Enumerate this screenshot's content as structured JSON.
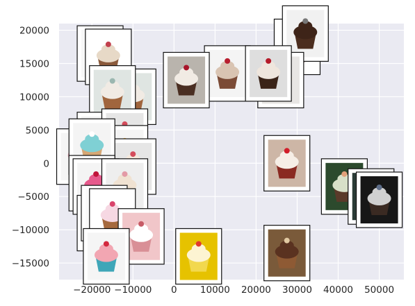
{
  "chart_data": {
    "type": "scatter",
    "title": "",
    "xlabel": "",
    "ylabel": "",
    "xlim": [
      -28000,
      56000
    ],
    "ylim": [
      -17500,
      21000
    ],
    "x_ticks": [
      -20000,
      -10000,
      0,
      10000,
      20000,
      30000,
      40000,
      50000
    ],
    "x_tick_labels": [
      "−20000",
      "−10000",
      "0",
      "10000",
      "20000",
      "30000",
      "40000",
      "50000"
    ],
    "y_ticks": [
      -15000,
      -10000,
      -5000,
      0,
      5000,
      10000,
      15000,
      20000
    ],
    "y_tick_labels": [
      "−15000",
      "−10000",
      "−5000",
      "0",
      "5000",
      "10000",
      "15000",
      "20000"
    ],
    "grid": true,
    "legend": "none",
    "marker": "image-thumbnail",
    "points": [
      {
        "x": 30000,
        "y": 17500,
        "image": "chocolate-cupcake"
      },
      {
        "x": 32000,
        "y": 19500,
        "image": "chocolate-cupcake-dark"
      },
      {
        "x": 13000,
        "y": 13500,
        "image": "cupcake-tray"
      },
      {
        "x": 26000,
        "y": 12500,
        "image": "cupcake-rows-red"
      },
      {
        "x": 23000,
        "y": 13500,
        "image": "cupcake-rows"
      },
      {
        "x": 3000,
        "y": 12500,
        "image": "cupcakes-on-plate"
      },
      {
        "x": -18000,
        "y": 16500,
        "image": "mint-frosting-cupcake"
      },
      {
        "x": -16000,
        "y": 16000,
        "image": "cupcake-white-bg"
      },
      {
        "x": -10000,
        "y": 10000,
        "image": "cupcake-on-table"
      },
      {
        "x": -15000,
        "y": 10500,
        "image": "cupcake-on-table"
      },
      {
        "x": -18000,
        "y": 3500,
        "image": "mint-cupcake-illustration"
      },
      {
        "x": -23000,
        "y": 1000,
        "image": "pink-cupcake-illustration"
      },
      {
        "x": -12000,
        "y": 4000,
        "image": "cupcake-photo"
      },
      {
        "x": -12000,
        "y": 1500,
        "image": "candle-cupcake"
      },
      {
        "x": -10000,
        "y": -500,
        "image": "cupcake-photo"
      },
      {
        "x": -20000,
        "y": 2500,
        "image": "cupcake-illustration"
      },
      {
        "x": -20000,
        "y": -3000,
        "image": "cupcake-illustration"
      },
      {
        "x": -19000,
        "y": -3500,
        "image": "teal-cupcake-illustration"
      },
      {
        "x": -12000,
        "y": -3500,
        "image": "cupcake-photo-stack"
      },
      {
        "x": -18000,
        "y": -9000,
        "image": "mini-cupcakes"
      },
      {
        "x": -17000,
        "y": -7500,
        "image": "cupcake-box"
      },
      {
        "x": -15000,
        "y": -8000,
        "image": "mini-cupcakes"
      },
      {
        "x": -8000,
        "y": -11000,
        "image": "pink-cupcake-pattern"
      },
      {
        "x": -16500,
        "y": -14000,
        "image": "teal-wrapper-cupcake"
      },
      {
        "x": 6000,
        "y": -14000,
        "image": "yellow-cupcake"
      },
      {
        "x": 27500,
        "y": 0,
        "image": "red-velvet-cupcake"
      },
      {
        "x": 41500,
        "y": -3500,
        "image": "unsplash-cupcake"
      },
      {
        "x": 48000,
        "y": -5000,
        "image": "cupcakes-dark"
      },
      {
        "x": 50000,
        "y": -5500,
        "image": "cupcakes-dark-2"
      },
      {
        "x": 27500,
        "y": -13500,
        "image": "chocolate-chip-cupcake"
      }
    ]
  }
}
